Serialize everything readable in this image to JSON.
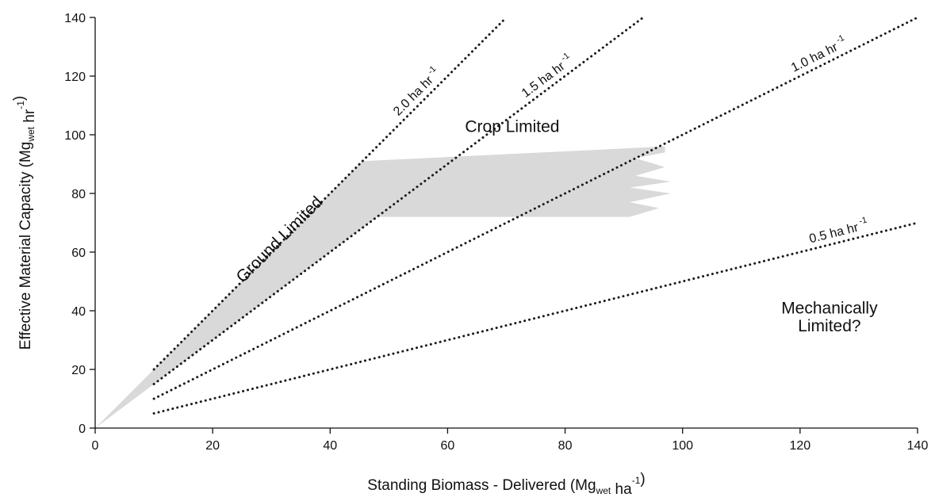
{
  "chart_data": {
    "type": "line",
    "title": "",
    "xlabel": "Standing Biomass - Delivered (Mg",
    "xlabel_sub": "wet",
    "xlabel_mid": " ha",
    "xlabel_sup": "-1",
    "xlabel_end": ")",
    "ylabel": "Effective Material Capacity (Mg",
    "ylabel_sub": "wet",
    "ylabel_mid": " hr",
    "ylabel_sup": "-1",
    "ylabel_end": ")",
    "xlim": [
      0,
      140
    ],
    "ylim": [
      0,
      140
    ],
    "xticks": [
      0,
      20,
      40,
      60,
      80,
      100,
      120,
      140
    ],
    "yticks": [
      0,
      20,
      40,
      60,
      80,
      100,
      120,
      140
    ],
    "grid": false,
    "series": [
      {
        "name": "2.0 ha hr",
        "sup": "-1",
        "rate": 2.0,
        "x": [
          10,
          70
        ],
        "y": [
          20,
          140
        ],
        "label_at": 56
      },
      {
        "name": "1.5 ha hr",
        "sup": "-1",
        "rate": 1.5,
        "x": [
          10,
          93.3
        ],
        "y": [
          15,
          140
        ],
        "label_at": 78
      },
      {
        "name": "1.0 ha hr",
        "sup": "-1",
        "rate": 1.0,
        "x": [
          10,
          140
        ],
        "y": [
          10,
          140
        ],
        "label_at": 124
      },
      {
        "name": "0.5 ha hr",
        "sup": "-1",
        "rate": 0.5,
        "x": [
          10,
          140
        ],
        "y": [
          5,
          70
        ],
        "label_at": 127
      }
    ],
    "shaded_region": {
      "color": "#d9d9d9",
      "points": [
        [
          0,
          0
        ],
        [
          45.5,
          91
        ],
        [
          97,
          96
        ],
        [
          97,
          94
        ],
        [
          92,
          92
        ],
        [
          97,
          89
        ],
        [
          92,
          86
        ],
        [
          98,
          84
        ],
        [
          91,
          82
        ],
        [
          98,
          80
        ],
        [
          91,
          77
        ],
        [
          96,
          75
        ],
        [
          91,
          72
        ],
        [
          48,
          72
        ],
        [
          0,
          0
        ]
      ]
    },
    "annotations": [
      {
        "text": "Crop Limited",
        "x": 71,
        "y": 101,
        "rotation": 0
      },
      {
        "text": "Ground Limited",
        "x": 32,
        "y": 63,
        "rotation": "along 2.0 ha hr line"
      },
      {
        "text": "Mechanically",
        "x": 125,
        "y": 39,
        "rotation": 0
      },
      {
        "text": "Limited?",
        "x": 125,
        "y": 33,
        "rotation": 0
      }
    ],
    "line_style": "dotted",
    "line_color": "#1a1a1a"
  }
}
